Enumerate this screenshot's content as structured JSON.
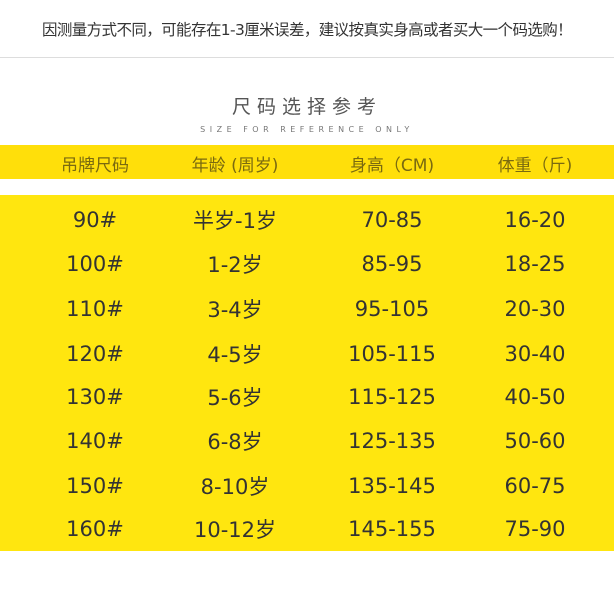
{
  "notice": "因测量方式不同，可能存在1-3厘米误差，建议按真实身高或者买大一个码选购！",
  "title": "尺码选择参考",
  "subtitle": "SIZE FOR REFERENCE ONLY",
  "colors": {
    "header_band": "#FFDF0A",
    "body_band": "#FFE60F"
  },
  "table": {
    "headers": [
      "吊牌尺码",
      "年龄 (周岁)",
      "身高（CM)",
      "体重（斤)"
    ],
    "rows": [
      [
        "90#",
        "半岁-1岁",
        "70-85",
        "16-20"
      ],
      [
        "100#",
        "1-2岁",
        "85-95",
        "18-25"
      ],
      [
        "110#",
        "3-4岁",
        "95-105",
        "20-30"
      ],
      [
        "120#",
        "4-5岁",
        "105-115",
        "30-40"
      ],
      [
        "130#",
        "5-6岁",
        "115-125",
        "40-50"
      ],
      [
        "140#",
        "6-8岁",
        "125-135",
        "50-60"
      ],
      [
        "150#",
        "8-10岁",
        "135-145",
        "60-75"
      ],
      [
        "160#",
        "10-12岁",
        "145-155",
        "75-90"
      ]
    ]
  }
}
